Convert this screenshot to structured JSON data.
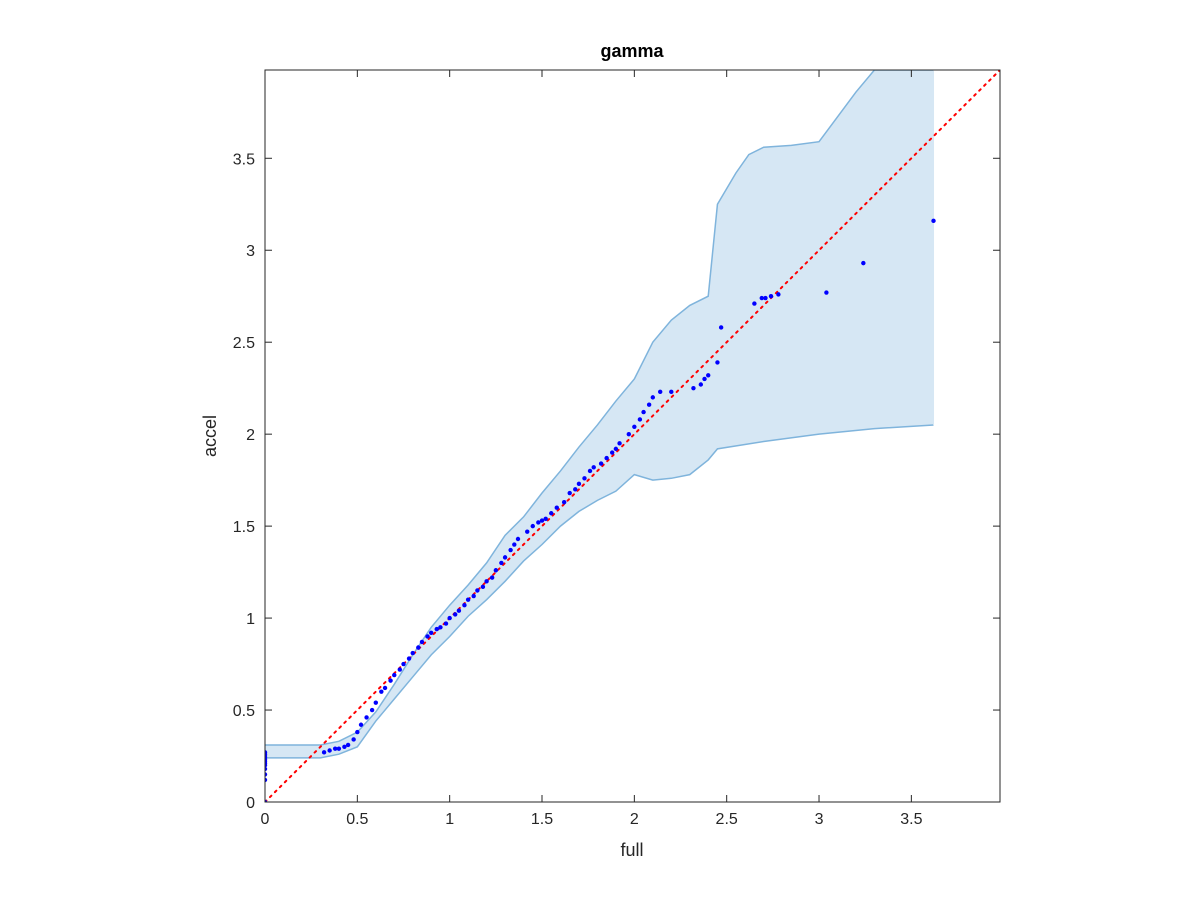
{
  "chart_data": {
    "type": "scatter",
    "title": "gamma",
    "xlabel": "full",
    "ylabel": "accel",
    "xlim": [
      0,
      3.98
    ],
    "ylim": [
      0,
      3.98
    ],
    "x_ticks": [
      0,
      0.5,
      1,
      1.5,
      2,
      2.5,
      3,
      3.5
    ],
    "y_ticks": [
      0,
      0.5,
      1,
      1.5,
      2,
      2.5,
      3,
      3.5
    ],
    "x_tick_labels": [
      "0",
      "0.5",
      "1",
      "1.5",
      "2",
      "2.5",
      "3",
      "3.5"
    ],
    "y_tick_labels": [
      "0",
      "0.5",
      "1",
      "1.5",
      "2",
      "2.5",
      "3",
      "3.5"
    ],
    "grid": false,
    "colors": {
      "points": "#0000ff",
      "reference_line": "#ff0000",
      "band_fill": "#d6e7f4",
      "band_edge": "#7fb4dc",
      "axes": "#262626"
    },
    "reference_line": {
      "style": "dotted",
      "x": [
        0,
        3.98
      ],
      "y": [
        0,
        3.98
      ]
    },
    "confidence_band": {
      "upper": [
        [
          0,
          0.31
        ],
        [
          0.3,
          0.31
        ],
        [
          0.4,
          0.33
        ],
        [
          0.5,
          0.38
        ],
        [
          0.6,
          0.49
        ],
        [
          0.7,
          0.64
        ],
        [
          0.8,
          0.8
        ],
        [
          0.9,
          0.95
        ],
        [
          1.0,
          1.07
        ],
        [
          1.1,
          1.18
        ],
        [
          1.2,
          1.3
        ],
        [
          1.3,
          1.45
        ],
        [
          1.4,
          1.55
        ],
        [
          1.5,
          1.68
        ],
        [
          1.6,
          1.8
        ],
        [
          1.7,
          1.93
        ],
        [
          1.8,
          2.05
        ],
        [
          1.9,
          2.18
        ],
        [
          2.0,
          2.3
        ],
        [
          2.1,
          2.5
        ],
        [
          2.2,
          2.62
        ],
        [
          2.3,
          2.7
        ],
        [
          2.4,
          2.75
        ],
        [
          2.45,
          3.25
        ],
        [
          2.55,
          3.42
        ],
        [
          2.62,
          3.52
        ],
        [
          2.7,
          3.56
        ],
        [
          2.85,
          3.57
        ],
        [
          3.0,
          3.59
        ],
        [
          3.2,
          3.86
        ],
        [
          3.3,
          3.98
        ],
        [
          3.62,
          3.98
        ]
      ],
      "lower": [
        [
          0,
          0.24
        ],
        [
          0.3,
          0.24
        ],
        [
          0.4,
          0.26
        ],
        [
          0.5,
          0.3
        ],
        [
          0.6,
          0.44
        ],
        [
          0.7,
          0.56
        ],
        [
          0.8,
          0.68
        ],
        [
          0.9,
          0.8
        ],
        [
          1.0,
          0.9
        ],
        [
          1.1,
          1.01
        ],
        [
          1.2,
          1.1
        ],
        [
          1.3,
          1.2
        ],
        [
          1.4,
          1.31
        ],
        [
          1.5,
          1.4
        ],
        [
          1.6,
          1.5
        ],
        [
          1.7,
          1.58
        ],
        [
          1.8,
          1.64
        ],
        [
          1.9,
          1.69
        ],
        [
          2.0,
          1.78
        ],
        [
          2.1,
          1.75
        ],
        [
          2.2,
          1.76
        ],
        [
          2.3,
          1.78
        ],
        [
          2.4,
          1.86
        ],
        [
          2.45,
          1.92
        ],
        [
          2.7,
          1.96
        ],
        [
          3.0,
          2.0
        ],
        [
          3.3,
          2.03
        ],
        [
          3.62,
          2.05
        ]
      ]
    },
    "points": {
      "x": [
        0,
        0,
        0,
        0,
        0,
        0,
        0,
        0,
        0,
        0,
        0,
        0,
        0.32,
        0.35,
        0.38,
        0.4,
        0.43,
        0.45,
        0.48,
        0.5,
        0.52,
        0.55,
        0.58,
        0.6,
        0.63,
        0.65,
        0.68,
        0.7,
        0.73,
        0.75,
        0.78,
        0.8,
        0.83,
        0.85,
        0.88,
        0.9,
        0.93,
        0.95,
        0.98,
        1.0,
        1.03,
        1.05,
        1.08,
        1.1,
        1.13,
        1.15,
        1.18,
        1.2,
        1.23,
        1.25,
        1.28,
        1.3,
        1.33,
        1.35,
        1.37,
        1.42,
        1.45,
        1.48,
        1.5,
        1.52,
        1.55,
        1.58,
        1.62,
        1.65,
        1.68,
        1.7,
        1.73,
        1.76,
        1.78,
        1.82,
        1.85,
        1.88,
        1.9,
        1.92,
        1.97,
        2.0,
        2.03,
        2.05,
        2.08,
        2.1,
        2.14,
        2.2,
        2.32,
        2.36,
        2.38,
        2.4,
        2.45,
        2.47,
        2.65,
        2.69,
        2.71,
        2.74,
        2.78,
        3.04,
        3.24,
        3.62
      ],
      "y": [
        0,
        0.12,
        0.15,
        0.18,
        0.2,
        0.21,
        0.22,
        0.23,
        0.24,
        0.25,
        0.26,
        0.27,
        0.27,
        0.28,
        0.29,
        0.29,
        0.3,
        0.31,
        0.34,
        0.38,
        0.42,
        0.46,
        0.5,
        0.54,
        0.6,
        0.62,
        0.66,
        0.69,
        0.72,
        0.75,
        0.78,
        0.81,
        0.84,
        0.87,
        0.9,
        0.92,
        0.94,
        0.95,
        0.97,
        1.0,
        1.02,
        1.04,
        1.07,
        1.1,
        1.12,
        1.15,
        1.17,
        1.2,
        1.22,
        1.26,
        1.3,
        1.33,
        1.37,
        1.4,
        1.43,
        1.47,
        1.5,
        1.52,
        1.53,
        1.54,
        1.57,
        1.6,
        1.63,
        1.68,
        1.7,
        1.73,
        1.76,
        1.8,
        1.82,
        1.84,
        1.87,
        1.9,
        1.92,
        1.95,
        2.0,
        2.04,
        2.08,
        2.12,
        2.16,
        2.2,
        2.23,
        2.23,
        2.25,
        2.27,
        2.3,
        2.32,
        2.39,
        2.58,
        2.71,
        2.74,
        2.74,
        2.75,
        2.76,
        2.77,
        2.93,
        3.16
      ]
    }
  }
}
